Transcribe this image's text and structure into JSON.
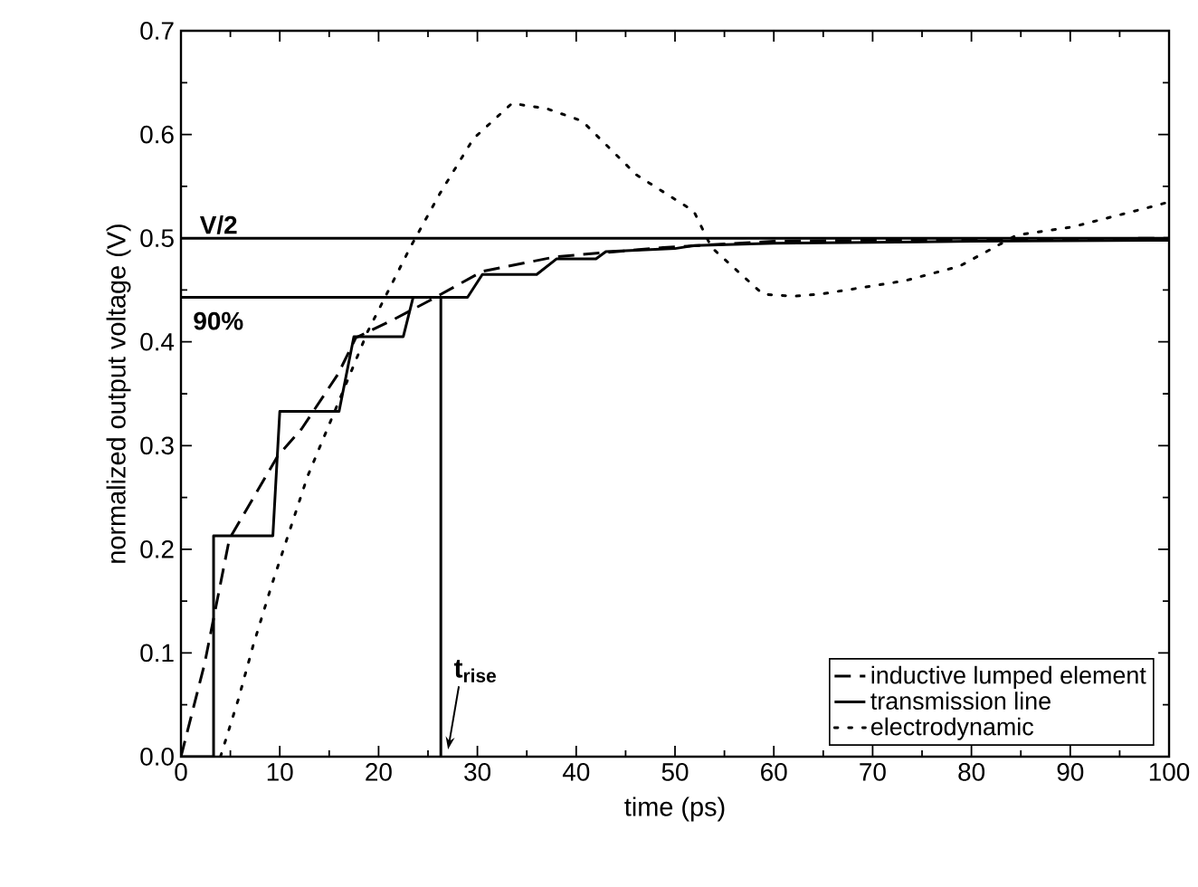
{
  "chart_data": {
    "type": "line",
    "xlabel": "time (ps)",
    "ylabel": "normalized output voltage (V)",
    "xlim": [
      0,
      100
    ],
    "ylim": [
      0,
      0.7
    ],
    "xticks": [
      0,
      10,
      20,
      30,
      40,
      50,
      60,
      70,
      80,
      90,
      100
    ],
    "yticks": [
      {
        "value": 0,
        "label": "0.0"
      },
      {
        "value": 0.1,
        "label": "0.1"
      },
      {
        "value": 0.2,
        "label": "0.2"
      },
      {
        "value": 0.3,
        "label": "0.3"
      },
      {
        "value": 0.4,
        "label": "0.4"
      },
      {
        "value": 0.5,
        "label": "0.5"
      },
      {
        "value": 0.6,
        "label": "0.6"
      },
      {
        "value": 0.7,
        "label": "0.7"
      }
    ],
    "grid": false,
    "legend": "bottom right",
    "marker": "none",
    "series": [
      {
        "name": "inductive lumped element",
        "color": "#000000",
        "line_style": "dashed",
        "x": [
          0,
          2.4,
          4.9,
          9.8,
          12.2,
          15.9,
          17.7,
          21.4,
          25,
          30.5,
          37.9,
          48.8,
          60,
          80,
          100
        ],
        "values": [
          0,
          0.09,
          0.21,
          0.29,
          0.316,
          0.369,
          0.404,
          0.421,
          0.439,
          0.468,
          0.482,
          0.491,
          0.497,
          0.499,
          0.5
        ]
      },
      {
        "name": "transmission line",
        "color": "#000000",
        "line_style": "solid",
        "x": [
          0,
          3.3,
          3.3,
          9.3,
          10,
          16,
          17.5,
          22.5,
          23.5,
          29,
          30.5,
          36,
          38,
          42,
          43,
          50,
          52,
          60,
          80,
          100
        ],
        "values": [
          0,
          0,
          0.213,
          0.213,
          0.333,
          0.333,
          0.405,
          0.405,
          0.443,
          0.443,
          0.465,
          0.465,
          0.48,
          0.48,
          0.487,
          0.49,
          0.493,
          0.495,
          0.497,
          0.498
        ]
      },
      {
        "name": "electrodynamic",
        "color": "#000000",
        "line_style": "dotted",
        "x": [
          4,
          5.8,
          7.3,
          9.2,
          11,
          12.8,
          15.6,
          18.9,
          23.2,
          26.2,
          29.6,
          33.5,
          37,
          40.6,
          46.1,
          51.9,
          53.7,
          58.9,
          62,
          64.7,
          73.3,
          78.8,
          84.6,
          90.3,
          98.9,
          100
        ],
        "values": [
          0,
          0.055,
          0.107,
          0.166,
          0.218,
          0.27,
          0.334,
          0.41,
          0.491,
          0.543,
          0.596,
          0.63,
          0.625,
          0.613,
          0.561,
          0.526,
          0.491,
          0.446,
          0.444,
          0.446,
          0.459,
          0.473,
          0.503,
          0.511,
          0.532,
          0.535
        ]
      },
      {
        "color": "#000000",
        "line_style": "solid",
        "x": [
          0,
          26.3,
          26.3
        ],
        "values": [
          0.443,
          0.443,
          0
        ]
      }
    ],
    "ref_lines": [
      {
        "axis": "y",
        "value": 0.5,
        "label": "V/2",
        "color": "#000000",
        "line_style": "solid"
      }
    ],
    "annotations": [
      {
        "text": "90%",
        "x": 0,
        "y": 0.443
      },
      {
        "text": "t$_{rise}$",
        "x": 26.3,
        "y": 0
      }
    ]
  }
}
